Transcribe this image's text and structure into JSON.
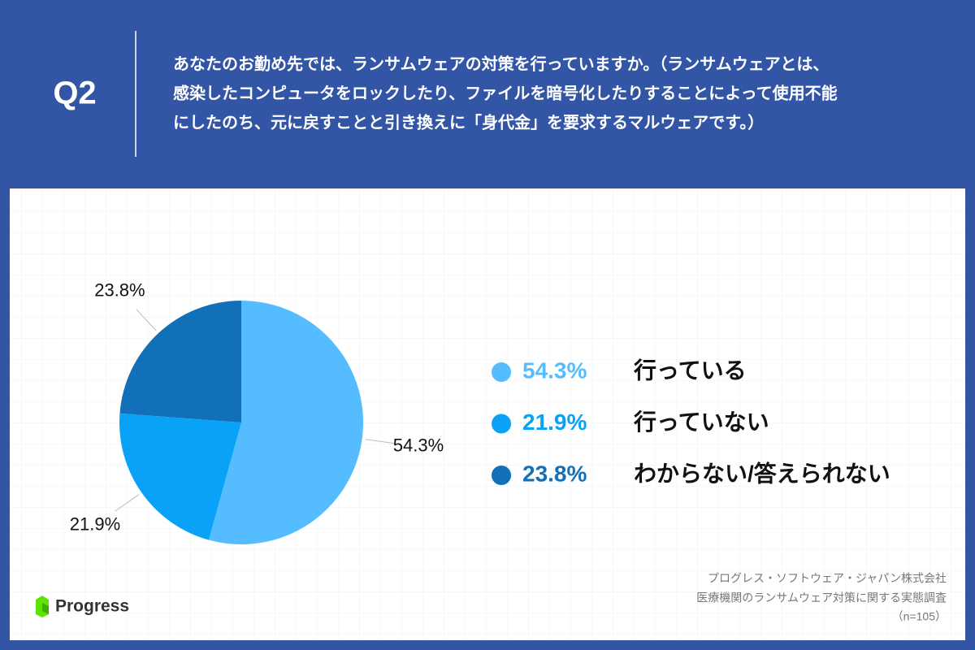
{
  "header": {
    "label": "Q2",
    "question": [
      "あなたのお勤め先では、ランサムウェアの対策を行っていますか。（ランサムウェアとは、",
      "感染したコンピュータをロックしたり、ファイルを暗号化したりすることによって使用不能",
      "にしたのち、元に戻すことと引き換えに「身代金」を要求するマルウェアです。）"
    ]
  },
  "chart_data": {
    "type": "pie",
    "categories": [
      "行っている",
      "行っていない",
      "わからない/答えられない"
    ],
    "values": [
      54.3,
      21.9,
      23.8
    ],
    "value_labels": [
      "54.3%",
      "21.9%",
      "23.8%"
    ],
    "colors": [
      "#55bdff",
      "#0aa2f7",
      "#1270b8"
    ]
  },
  "source": [
    "プログレス・ソフトウェア・ジャパン株式会社",
    "医療機関のランサムウェア対策に関する実態調査",
    "（n=105）"
  ],
  "logo": "Progress"
}
